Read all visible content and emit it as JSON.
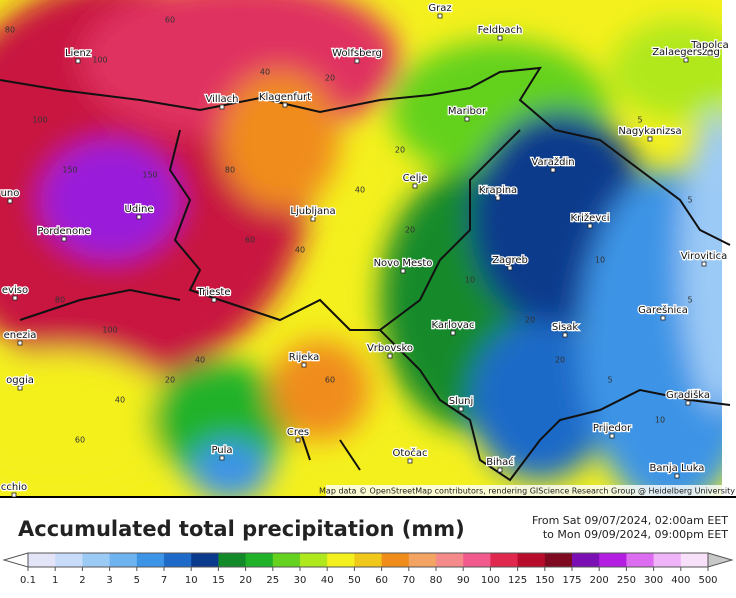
{
  "map": {
    "cities": [
      "Graz",
      "Lienz",
      "Wolfsberg",
      "Feldbach",
      "Zalaegerszeg",
      "Tapolca",
      "Villach",
      "Klagenfurt",
      "Maribor",
      "Nagykanizsa",
      "Celje",
      "Varaždin",
      "Krapina",
      "Križevci",
      "Udine",
      "Ljubljana",
      "Pordenone",
      "Novo Mesto",
      "Zagreb",
      "Virovitica",
      "Trieste",
      "Garešnica",
      "Karlovac",
      "Sisak",
      "Rijeka",
      "Vrbovsko",
      "Gradiška",
      "Slunj",
      "Prijedor",
      "Cres",
      "Pula",
      "Otočac",
      "Bihać",
      "Banja Luka",
      "uno",
      "eviso",
      "enezia",
      "oggia",
      "cchio"
    ],
    "contour_labels": [
      "80",
      "100",
      "60",
      "40",
      "20",
      "100",
      "150",
      "80",
      "60",
      "40",
      "20",
      "10",
      "5",
      "5",
      "10",
      "20",
      "40",
      "20",
      "5",
      "10",
      "5",
      "20",
      "40",
      "60",
      "80",
      "40",
      "20",
      "60",
      "100",
      "150"
    ],
    "attribution": "Map data © OpenStreetMap contributors, rendering GIScience Research Group @ Heidelberg University"
  },
  "legend": {
    "title": "Accumulated total precipitation (mm)",
    "period_from": "From Sat 09/07/2024, 02:00am EET",
    "period_to": "to Mon 09/09/2024, 09:00pm EET",
    "levels": [
      "0.1",
      "1",
      "2",
      "3",
      "5",
      "7",
      "10",
      "15",
      "20",
      "25",
      "30",
      "40",
      "50",
      "60",
      "70",
      "80",
      "90",
      "100",
      "125",
      "150",
      "175",
      "200",
      "250",
      "300",
      "400",
      "500"
    ],
    "colors": [
      "#e4e4f8",
      "#c8dcfa",
      "#9ccaf6",
      "#6eb2f0",
      "#3c94e6",
      "#1e6ac8",
      "#0a3a8c",
      "#138a2a",
      "#22b22a",
      "#64d21e",
      "#b0e81e",
      "#f4f01e",
      "#f0c81a",
      "#f08c1a",
      "#f4a462",
      "#f48a8a",
      "#f05a8c",
      "#e0284e",
      "#b80c2c",
      "#7e0a22",
      "#7a10b4",
      "#b41ee0",
      "#dc6cf0",
      "#f0b4f8",
      "#f8e0fa"
    ]
  }
}
